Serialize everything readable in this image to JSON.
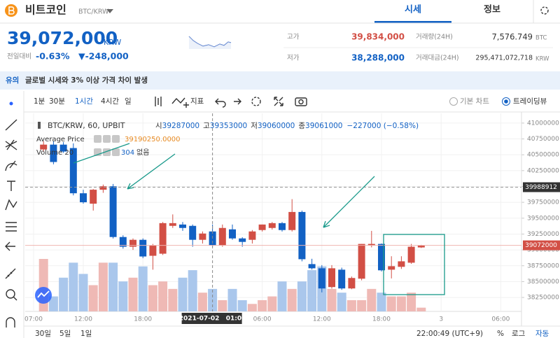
{
  "header": {
    "name": "비트코인",
    "pair": "BTC/KRW",
    "tabs": [
      "시세",
      "정보"
    ]
  },
  "ticker": {
    "price": "39,072,000",
    "unit": "KRW",
    "change_label": "전일대비",
    "change_rate": "-0.63%",
    "change_amount": "▼-248,000",
    "high_label": "고가",
    "high": "39,834,000",
    "low_label": "저가",
    "low": "38,288,000",
    "volume_label": "거래량(24H)",
    "volume": "7,576.749",
    "volume_unit": "BTC",
    "value_label": "거래대금(24H)",
    "value": "295,471,072,718",
    "value_unit": "KRW"
  },
  "notice": {
    "tag": "유의",
    "text": "글로벌 시세와 3% 이상 가격 차이 발생"
  },
  "toolbar": {
    "intervals": [
      "1분",
      "30분",
      "1시간",
      "4시간",
      "일"
    ],
    "indicator": "지표",
    "chart_types": [
      "기본 차트",
      "트레이딩뷰"
    ]
  },
  "chart_data": {
    "type": "candlestick",
    "title": "BTC/KRW, 60, UPBIT",
    "ohlc_legend": [
      {
        "label": "시",
        "value": "39287000"
      },
      {
        "label": "고",
        "value": "39353000"
      },
      {
        "label": "저",
        "value": "39060000"
      },
      {
        "label": "종",
        "value": "39061000"
      }
    ],
    "change_legend": "−227000 (−0.58%)",
    "average_price": {
      "label": "Average Price",
      "value": "39190250.0000"
    },
    "volume_legend": {
      "label": "Volume 20",
      "value": "304",
      "extra": "없음"
    },
    "open": [
      40584000,
      40660000,
      40660000,
      40606000,
      39893000,
      39729000,
      39949000,
      40003000,
      39203000,
      39050000,
      39159000,
      38907000,
      38940000,
      39379000,
      39400000,
      39379000,
      39159000,
      39291000,
      39072000,
      39324000,
      39181000,
      39159000,
      39313000,
      39346000,
      39422000,
      39313000,
      39598000,
      38776000,
      38710000,
      38414000,
      38688000,
      38392000,
      38546000,
      39072000,
      39094000,
      38688000,
      38733000,
      38798000,
      39039000
    ],
    "high": [
      40715000,
      40715000,
      40700000,
      40680000,
      39949000,
      39960000,
      40030000,
      40040000,
      39230000,
      39180000,
      39181000,
      39094000,
      39440000,
      39560000,
      39440000,
      39400000,
      39291000,
      39400000,
      39400000,
      39400000,
      39200000,
      39313000,
      39400000,
      39440000,
      39440000,
      39800000,
      39620000,
      38860000,
      38760000,
      38760000,
      38720000,
      38580000,
      39094000,
      39300000,
      39100000,
      38900000,
      38900000,
      39094000,
      39080000
    ],
    "low": [
      40551000,
      40350000,
      40530000,
      39860000,
      39729000,
      39620000,
      39900000,
      39180000,
      39020000,
      39000000,
      38870000,
      38688000,
      38920000,
      39346000,
      39300000,
      39050000,
      39100000,
      39050000,
      39050000,
      39160000,
      39050000,
      39100000,
      39290000,
      39320000,
      39290000,
      39290000,
      38820000,
      38690000,
      38330000,
      38390000,
      38370000,
      38380000,
      38520000,
      39040000,
      38660000,
      38550000,
      38700000,
      38780000,
      39030000
    ],
    "close": [
      40660000,
      40386000,
      40551000,
      39893000,
      39751000,
      39949000,
      40003000,
      39203000,
      39050000,
      39159000,
      38896000,
      39072000,
      39422000,
      39422000,
      39346000,
      39159000,
      39258000,
      39072000,
      39346000,
      39181000,
      39126000,
      39291000,
      39400000,
      39422000,
      39313000,
      39598000,
      38853000,
      38710000,
      38392000,
      38710000,
      38392000,
      38557000,
      39094000,
      39094000,
      38678000,
      38743000,
      38820000,
      39050000,
      39072000
    ],
    "volume": [
      70,
      20,
      45,
      65,
      50,
      35,
      65,
      65,
      40,
      45,
      60,
      35,
      40,
      30,
      45,
      55,
      25,
      30,
      15,
      30,
      15,
      10,
      15,
      20,
      40,
      30,
      40,
      55,
      60,
      30,
      25,
      15,
      15,
      30,
      25,
      20,
      20,
      25,
      5
    ],
    "up_color": "#d24f45",
    "down_color": "#1261c4",
    "up_volume_color": "#efb9b5",
    "down_volume_color": "#aac7ec",
    "ylim": [
      38030000,
      41153000
    ],
    "yticks": [
      41000000,
      40750000,
      40500000,
      40250000,
      40000000,
      39750000,
      39500000,
      39250000,
      39000000,
      38750000,
      38500000,
      38250000
    ],
    "xticks": [
      {
        "value": 0,
        "label": "07:00"
      },
      {
        "value": 5,
        "label": "12:00"
      },
      {
        "value": 11,
        "label": "18:00"
      },
      {
        "value": 23,
        "label": "06:00"
      },
      {
        "value": 29,
        "label": "12:00"
      },
      {
        "value": 35,
        "label": "18:00"
      },
      {
        "value": 41,
        "label": "3"
      },
      {
        "value": 47,
        "label": "06:00"
      }
    ],
    "crosshair": {
      "value": 18,
      "label": "2021-07-02   01:00"
    },
    "price_tags": [
      39988912,
      39072000
    ],
    "grid": true
  },
  "footer": {
    "ranges": [
      "30일",
      "5일",
      "1일"
    ],
    "time": "22:00:49 (UTC+9)",
    "buttons": [
      "%",
      "로그",
      "자동"
    ]
  }
}
